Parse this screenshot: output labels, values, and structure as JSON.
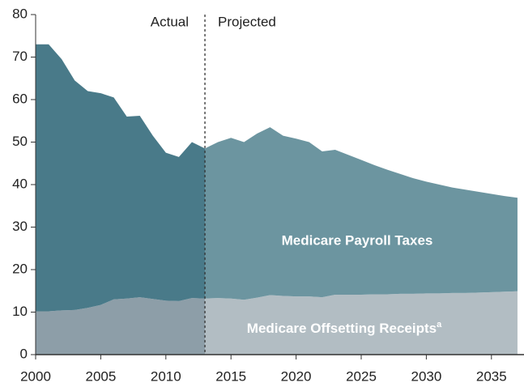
{
  "chart_data": {
    "type": "stacked_area",
    "x": [
      2000,
      2001,
      2002,
      2003,
      2004,
      2005,
      2006,
      2007,
      2008,
      2009,
      2010,
      2011,
      2012,
      2013,
      2014,
      2015,
      2016,
      2017,
      2018,
      2019,
      2020,
      2021,
      2022,
      2023,
      2024,
      2025,
      2026,
      2027,
      2028,
      2029,
      2030,
      2031,
      2032,
      2033,
      2034,
      2035,
      2036,
      2037
    ],
    "series": [
      {
        "name": "Medicare Offsetting Receipts",
        "footnote": "a",
        "color": "#8d9ea8",
        "projected_color": "#b2bdc3",
        "values": [
          10.2,
          10.2,
          10.4,
          10.5,
          11,
          11.7,
          13,
          13.2,
          13.5,
          13.1,
          12.7,
          12.6,
          13.3,
          13.2,
          13.3,
          13.2,
          12.9,
          13.4,
          14,
          13.8,
          13.7,
          13.7,
          13.5,
          14.1,
          14.1,
          14.1,
          14.2,
          14.2,
          14.3,
          14.3,
          14.4,
          14.4,
          14.5,
          14.5,
          14.6,
          14.7,
          14.8,
          14.9
        ]
      },
      {
        "name": "Medicare Payroll Taxes",
        "color": "#497a89",
        "projected_color": "#6c95a0",
        "values": [
          62.8,
          62.8,
          59.1,
          54,
          51,
          49.8,
          47.5,
          42.8,
          42.7,
          38.4,
          34.8,
          33.9,
          36.7,
          35.3,
          36.7,
          37.8,
          37.1,
          38.6,
          39.5,
          37.7,
          37.1,
          36.3,
          34.3,
          34.1,
          32.9,
          31.7,
          30.4,
          29.3,
          28.2,
          27.2,
          26.3,
          25.6,
          24.8,
          24.3,
          23.7,
          23.1,
          22.5,
          22
        ]
      }
    ],
    "divider": {
      "x": 2013,
      "left_label": "Actual",
      "right_label": "Projected"
    },
    "xlim": [
      2000,
      2037.5
    ],
    "xticks": [
      2000,
      2005,
      2010,
      2015,
      2020,
      2025,
      2030,
      2035
    ],
    "ylim": [
      0,
      80
    ],
    "yticks": [
      0,
      10,
      20,
      30,
      40,
      50,
      60,
      70,
      80
    ]
  }
}
